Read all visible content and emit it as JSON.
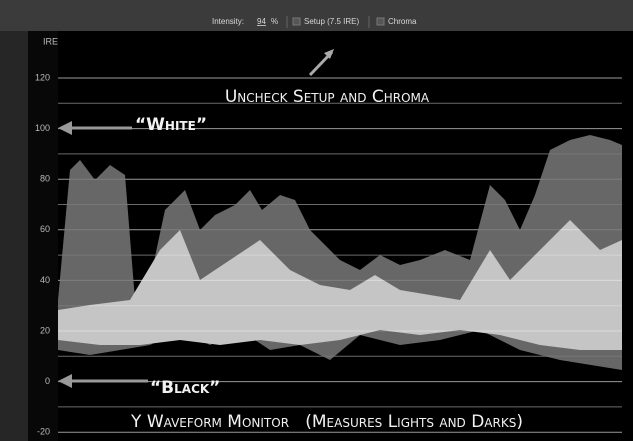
{
  "toolbar": {
    "intensity_label": "Intensity:",
    "intensity_value": "94",
    "intensity_unit": "%",
    "setup_label": "Setup (7.5 IRE)",
    "chroma_label": "Chroma"
  },
  "scope": {
    "axis_label": "IRE",
    "scale_labels": [
      "120",
      "100",
      "80",
      "60",
      "40",
      "20",
      "0",
      "-20"
    ]
  },
  "annotations": {
    "instruction": "Uncheck Setup and Chroma",
    "white": "“White”",
    "black": "“Black”",
    "caption": "Y Waveform Monitor   (Measures Lights and Darks)"
  }
}
